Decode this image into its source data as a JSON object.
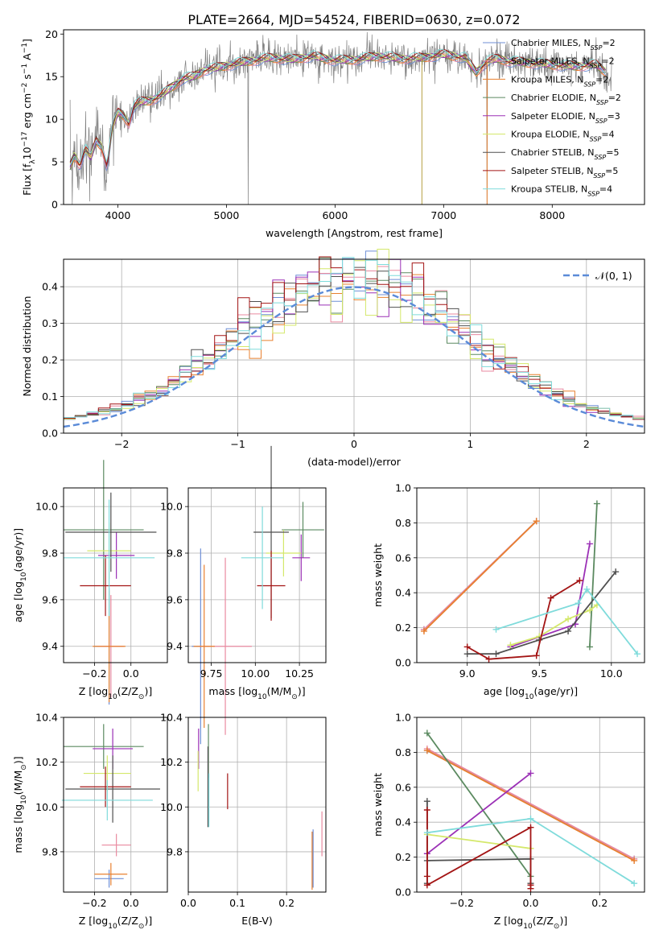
{
  "title": "PLATE=2664, MJD=54524, FIBERID=0630, z=0.072",
  "colors": {
    "Chabrier MILES": "#6f8fd6",
    "Salpeter MILES": "#e98aa0",
    "Kroupa MILES": "#e8802f",
    "Chabrier ELODIE": "#5b8a60",
    "Salpeter ELODIE": "#9b30b6",
    "Kroupa ELODIE": "#d4e86a",
    "Chabrier STELIB": "#505050",
    "Salpeter STELIB": "#a31414",
    "Kroupa STELIB": "#7fdbdb",
    "data": "#808080",
    "normal": "#5b8bd8"
  },
  "chart_data": [
    {
      "type": "line",
      "id": "spectrum",
      "xlabel": "wavelength [Angstrom, rest frame]",
      "ylabel": "Flux [f",
      "ylabel_sub": "λ",
      "ylabel_rest": "10",
      "ylabel_exp": "−17",
      "ylabel_units": " erg cm",
      "ylabel_units_exp": "−2",
      "ylabel_units_2": " s",
      "ylabel_units_2_exp": "−1",
      "ylabel_units_3": " A",
      "ylabel_units_3_exp": "−1",
      "ylabel_end": "]",
      "xlim": [
        3500,
        8850
      ],
      "ylim": [
        0,
        20.5
      ],
      "xticks": [
        4000,
        5000,
        6000,
        7000,
        8000
      ],
      "yticks": [
        0,
        5,
        10,
        15,
        20
      ],
      "continuum": {
        "x": [
          3560,
          3600,
          3650,
          3700,
          3750,
          3800,
          3850,
          3900,
          3950,
          4000,
          4050,
          4100,
          4150,
          4200,
          4300,
          4400,
          4500,
          4600,
          4700,
          4800,
          4900,
          5000,
          5200,
          5400,
          5600,
          5800,
          6000,
          6200,
          6400,
          6600,
          6800,
          7000,
          7200,
          7300,
          7400,
          7500,
          7600,
          7800,
          8000,
          8200,
          8400,
          8550
        ],
        "y": [
          4.5,
          5.8,
          4.6,
          6.5,
          5.5,
          7.5,
          6.8,
          4.5,
          9.0,
          10.8,
          10.5,
          9.5,
          11.5,
          12.0,
          12.2,
          12.8,
          13.8,
          14.8,
          15.0,
          15.8,
          16.0,
          16.3,
          16.8,
          17.2,
          17.0,
          17.4,
          16.9,
          17.0,
          17.4,
          17.1,
          17.2,
          17.6,
          17.2,
          15.5,
          16.8,
          17.1,
          16.8,
          16.6,
          16.4,
          16.2,
          16.4,
          15.0
        ]
      },
      "legend_position": "right",
      "series": [
        {
          "key": "Chabrier MILES",
          "name": "Chabrier MILES, N",
          "sub": "SSP",
          "eq": "=2"
        },
        {
          "key": "Salpeter MILES",
          "name": "Salpeter MILES, N",
          "sub": "SSP",
          "eq": "=2"
        },
        {
          "key": "Kroupa MILES",
          "name": "Kroupa MILES, N",
          "sub": "SSP",
          "eq": "=2"
        },
        {
          "key": "Chabrier ELODIE",
          "name": "Chabrier ELODIE, N",
          "sub": "SSP",
          "eq": "=2"
        },
        {
          "key": "Salpeter ELODIE",
          "name": "Salpeter ELODIE, N",
          "sub": "SSP",
          "eq": "=3"
        },
        {
          "key": "Kroupa ELODIE",
          "name": "Kroupa ELODIE, N",
          "sub": "SSP",
          "eq": "=4"
        },
        {
          "key": "Chabrier STELIB",
          "name": "Chabrier STELIB, N",
          "sub": "SSP",
          "eq": "=5"
        },
        {
          "key": "Salpeter STELIB",
          "name": "Salpeter STELIB, N",
          "sub": "SSP",
          "eq": "=5"
        },
        {
          "key": "Kroupa STELIB",
          "name": "Kroupa STELIB, N",
          "sub": "SSP",
          "eq": "=4"
        }
      ]
    },
    {
      "type": "histogram",
      "id": "residuals",
      "xlabel": "(data-model)/error",
      "ylabel": "Normed distribution",
      "xlim": [
        -2.5,
        2.5
      ],
      "ylim": [
        0,
        0.475
      ],
      "xticks": [
        -2,
        -1,
        0,
        1,
        2
      ],
      "yticks": [
        0.0,
        0.1,
        0.2,
        0.3,
        0.4
      ],
      "bin_edges_start": -2.5,
      "bin_width": 0.1,
      "legend": "𝒩(0, 1)",
      "legend_position": "top-right"
    },
    {
      "type": "scatter",
      "id": "age-vs-z",
      "xlabel": "Z [log",
      "xlabel_sub": "10",
      "xlabel_rest": "(Z/Z",
      "xlabel_sub2": "⊙",
      "xlabel_end": ")]",
      "ylabel": "age  [log",
      "ylabel_sub": "10",
      "ylabel_rest": "(age/yr)]",
      "xlim": [
        -0.37,
        0.2
      ],
      "ylim": [
        9.33,
        10.08
      ],
      "xticks": [
        -0.2,
        0.0
      ],
      "yticks": [
        9.4,
        9.6,
        9.8,
        10.0
      ],
      "points": [
        {
          "key": "Chabrier MILES",
          "x": -0.12,
          "y": 9.4,
          "xerr": 0.08,
          "yerr": 0.25
        },
        {
          "key": "Salpeter MILES",
          "x": -0.11,
          "y": 9.4,
          "xerr": 0.07,
          "yerr": 0.22
        },
        {
          "key": "Kroupa MILES",
          "x": -0.12,
          "y": 9.4,
          "xerr": 0.09,
          "yerr": 0.24
        },
        {
          "key": "Chabrier ELODIE",
          "x": -0.15,
          "y": 9.9,
          "xerr": 0.22,
          "yerr": 0.3
        },
        {
          "key": "Salpeter ELODIE",
          "x": -0.08,
          "y": 9.79,
          "xerr": 0.1,
          "yerr": 0.1
        },
        {
          "key": "Kroupa ELODIE",
          "x": -0.12,
          "y": 9.81,
          "xerr": 0.12,
          "yerr": 0.12
        },
        {
          "key": "Chabrier STELIB",
          "x": -0.11,
          "y": 9.89,
          "xerr": 0.25,
          "yerr": 0.17
        },
        {
          "key": "Salpeter STELIB",
          "x": -0.14,
          "y": 9.66,
          "xerr": 0.14,
          "yerr": 0.13
        },
        {
          "key": "Kroupa STELIB",
          "x": -0.12,
          "y": 9.78,
          "xerr": 0.25,
          "yerr": 0.25
        }
      ]
    },
    {
      "type": "scatter",
      "id": "age-vs-mass",
      "xlabel": "mass [log",
      "xlabel_sub": "10",
      "xlabel_rest": "(M/M",
      "xlabel_sub2": "⊙",
      "xlabel_end": ")]",
      "xlim": [
        9.62,
        10.4
      ],
      "ylim": [
        9.33,
        10.08
      ],
      "xticks": [
        9.75,
        10.0,
        10.25
      ],
      "yticks": [
        9.4,
        9.6,
        9.8,
        10.0
      ],
      "points": [
        {
          "key": "Chabrier MILES",
          "x": 9.69,
          "y": 9.4,
          "xerr": 0.05,
          "yerr": 0.42
        },
        {
          "key": "Salpeter MILES",
          "x": 9.83,
          "y": 9.4,
          "xerr": 0.15,
          "yerr": 0.38
        },
        {
          "key": "Kroupa MILES",
          "x": 9.71,
          "y": 9.4,
          "xerr": 0.06,
          "yerr": 0.35
        },
        {
          "key": "Chabrier ELODIE",
          "x": 10.27,
          "y": 9.9,
          "xerr": 0.12,
          "yerr": 0.12
        },
        {
          "key": "Salpeter ELODIE",
          "x": 10.26,
          "y": 9.78,
          "xerr": 0.05,
          "yerr": 0.1
        },
        {
          "key": "Kroupa ELODIE",
          "x": 10.16,
          "y": 9.8,
          "xerr": 0.1,
          "yerr": 0.1
        },
        {
          "key": "Chabrier STELIB",
          "x": 10.09,
          "y": 9.89,
          "xerr": 0.1,
          "yerr": 0.37
        },
        {
          "key": "Salpeter STELIB",
          "x": 10.09,
          "y": 9.66,
          "xerr": 0.08,
          "yerr": 0.15
        },
        {
          "key": "Kroupa STELIB",
          "x": 10.04,
          "y": 9.78,
          "xerr": 0.12,
          "yerr": 0.22
        }
      ]
    },
    {
      "type": "line",
      "id": "weight-vs-age",
      "xlabel": "age  [log",
      "xlabel_sub": "10",
      "xlabel_rest": "(age/yr)]",
      "ylabel": "mass weight",
      "xlim": [
        8.65,
        10.23
      ],
      "ylim": [
        0,
        1.0
      ],
      "xticks": [
        9.0,
        9.5,
        10.0
      ],
      "yticks": [
        0.0,
        0.2,
        0.4,
        0.6,
        0.8,
        1.0
      ],
      "series": [
        {
          "key": "Chabrier MILES",
          "x": [
            8.7,
            9.48
          ],
          "y": [
            0.19,
            0.81
          ]
        },
        {
          "key": "Salpeter MILES",
          "x": [
            8.7,
            9.48
          ],
          "y": [
            0.19,
            0.81
          ]
        },
        {
          "key": "Kroupa MILES",
          "x": [
            8.7,
            9.48
          ],
          "y": [
            0.18,
            0.81
          ]
        },
        {
          "key": "Chabrier ELODIE",
          "x": [
            9.85,
            9.9
          ],
          "y": [
            0.09,
            0.91
          ]
        },
        {
          "key": "Salpeter ELODIE",
          "x": [
            9.3,
            9.75,
            9.85
          ],
          "y": [
            0.09,
            0.22,
            0.68
          ]
        },
        {
          "key": "Kroupa ELODIE",
          "x": [
            9.3,
            9.5,
            9.7,
            9.85,
            9.9
          ],
          "y": [
            0.1,
            0.15,
            0.25,
            0.3,
            0.33
          ]
        },
        {
          "key": "Chabrier STELIB",
          "x": [
            9.0,
            9.2,
            9.5,
            9.7,
            10.03
          ],
          "y": [
            0.05,
            0.05,
            0.13,
            0.18,
            0.52
          ]
        },
        {
          "key": "Salpeter STELIB",
          "x": [
            9.0,
            9.15,
            9.48,
            9.58,
            9.78
          ],
          "y": [
            0.09,
            0.02,
            0.04,
            0.37,
            0.47
          ]
        },
        {
          "key": "Kroupa STELIB",
          "x": [
            9.2,
            9.77,
            9.83,
            10.18
          ],
          "y": [
            0.19,
            0.34,
            0.42,
            0.05
          ]
        }
      ]
    },
    {
      "type": "scatter",
      "id": "mass-vs-z",
      "xlabel": "Z [log",
      "xlabel_sub": "10",
      "xlabel_rest": "(Z/Z",
      "xlabel_sub2": "⊙",
      "xlabel_end": ")]",
      "ylabel": "mass [log",
      "ylabel_sub": "10",
      "ylabel_rest": "(M/M",
      "ylabel_sub2": "⊙",
      "ylabel_end": ")]",
      "xlim": [
        -0.37,
        0.2
      ],
      "ylim": [
        9.62,
        10.4
      ],
      "xticks": [
        -0.2,
        0.0
      ],
      "yticks": [
        9.8,
        10.0,
        10.2,
        10.4
      ],
      "points": [
        {
          "key": "Chabrier MILES",
          "x": -0.12,
          "y": 9.68,
          "xerr": 0.08,
          "yerr": 0.04
        },
        {
          "key": "Salpeter MILES",
          "x": -0.08,
          "y": 9.83,
          "xerr": 0.08,
          "yerr": 0.05
        },
        {
          "key": "Kroupa MILES",
          "x": -0.11,
          "y": 9.7,
          "xerr": 0.09,
          "yerr": 0.05
        },
        {
          "key": "Chabrier ELODIE",
          "x": -0.15,
          "y": 10.27,
          "xerr": 0.22,
          "yerr": 0.1
        },
        {
          "key": "Salpeter ELODIE",
          "x": -0.1,
          "y": 10.26,
          "xerr": 0.11,
          "yerr": 0.09
        },
        {
          "key": "Kroupa ELODIE",
          "x": -0.13,
          "y": 10.15,
          "xerr": 0.13,
          "yerr": 0.08
        },
        {
          "key": "Chabrier STELIB",
          "x": -0.1,
          "y": 10.08,
          "xerr": 0.26,
          "yerr": 0.15
        },
        {
          "key": "Salpeter STELIB",
          "x": -0.14,
          "y": 10.09,
          "xerr": 0.14,
          "yerr": 0.09
        },
        {
          "key": "Kroupa STELIB",
          "x": -0.13,
          "y": 10.03,
          "xerr": 0.25,
          "yerr": 0.09
        }
      ]
    },
    {
      "type": "scatter",
      "id": "mass-vs-ebv",
      "xlabel": "E(B-V)",
      "xlim": [
        0.0,
        0.28
      ],
      "ylim": [
        9.62,
        10.4
      ],
      "xticks": [
        0.0,
        0.1,
        0.2
      ],
      "yticks": [
        9.8,
        10.0,
        10.2,
        10.4
      ],
      "points": [
        {
          "key": "Chabrier MILES",
          "x": 0.254,
          "y": 9.77,
          "yerr": 0.13
        },
        {
          "key": "Salpeter MILES",
          "x": 0.272,
          "y": 9.88,
          "yerr": 0.1
        },
        {
          "key": "Kroupa MILES",
          "x": 0.252,
          "y": 9.76,
          "yerr": 0.13
        },
        {
          "key": "Chabrier ELODIE",
          "x": 0.041,
          "y": 10.25,
          "yerr": 0.12
        },
        {
          "key": "Salpeter ELODIE",
          "x": 0.021,
          "y": 10.26,
          "yerr": 0.09
        },
        {
          "key": "Kroupa ELODIE",
          "x": 0.02,
          "y": 10.16,
          "yerr": 0.09
        },
        {
          "key": "Chabrier STELIB",
          "x": 0.04,
          "y": 10.09,
          "yerr": 0.18
        },
        {
          "key": "Salpeter STELIB",
          "x": 0.08,
          "y": 10.07,
          "yerr": 0.08
        },
        {
          "key": "Kroupa STELIB",
          "x": 0.042,
          "y": 10.03,
          "yerr": 0.12
        }
      ]
    },
    {
      "type": "line",
      "id": "weight-vs-z",
      "xlabel": "Z [log",
      "xlabel_sub": "10",
      "xlabel_rest": "(Z/Z",
      "xlabel_sub2": "⊙",
      "xlabel_end": ")]",
      "ylabel": "mass weight",
      "xlim": [
        -0.33,
        0.33
      ],
      "ylim": [
        0,
        1.0
      ],
      "xticks": [
        -0.2,
        0.0,
        0.2
      ],
      "yticks": [
        0.0,
        0.2,
        0.4,
        0.6,
        0.8,
        1.0
      ],
      "series": [
        {
          "key": "Chabrier MILES",
          "x": [
            -0.3,
            0.3
          ],
          "y": [
            0.81,
            0.19
          ]
        },
        {
          "key": "Salpeter MILES",
          "x": [
            -0.3,
            0.3
          ],
          "y": [
            0.82,
            0.19
          ]
        },
        {
          "key": "Kroupa MILES",
          "x": [
            -0.3,
            0.3
          ],
          "y": [
            0.81,
            0.18
          ]
        },
        {
          "key": "Chabrier ELODIE",
          "x": [
            -0.3,
            0.0
          ],
          "y": [
            0.91,
            0.09
          ]
        },
        {
          "key": "Salpeter ELODIE",
          "x": [
            -0.3,
            0.0
          ],
          "y": [
            0.22,
            0.68
          ]
        },
        {
          "key": "Kroupa ELODIE",
          "x": [
            -0.3,
            0.0
          ],
          "y": [
            0.33,
            0.25
          ]
        },
        {
          "key": "Chabrier STELIB",
          "x": [
            -0.3,
            -0.3,
            -0.3,
            0.0,
            0.0
          ],
          "y": [
            0.52,
            0.05,
            0.18,
            0.19,
            0.05
          ]
        },
        {
          "key": "Salpeter STELIB",
          "x": [
            -0.3,
            -0.3,
            -0.3,
            0.0,
            0.0,
            0.0
          ],
          "y": [
            0.47,
            0.09,
            0.04,
            0.37,
            0.04,
            0.02
          ]
        },
        {
          "key": "Kroupa STELIB",
          "x": [
            -0.3,
            0.0,
            0.3
          ],
          "y": [
            0.34,
            0.42,
            0.05
          ]
        }
      ]
    }
  ]
}
